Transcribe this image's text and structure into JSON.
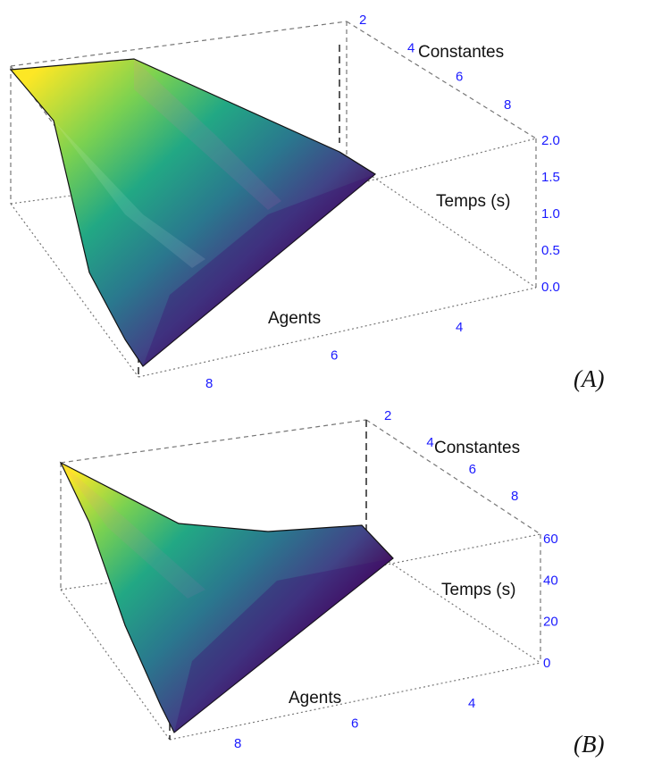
{
  "colors": {
    "palette": [
      "#fde725",
      "#7ad151",
      "#22a884",
      "#2a788e",
      "#414487",
      "#440154"
    ],
    "tick_color": "#1a1aff",
    "box_color": "#777777"
  },
  "chart_data": [
    {
      "type": "surface",
      "panel_label": "(A)",
      "xlabel": "Constantes",
      "ylabel": "Agents",
      "zlabel": "Temps (s)",
      "x_ticks": [
        "2",
        "4",
        "6",
        "8"
      ],
      "y_ticks": [
        "4",
        "6",
        "8"
      ],
      "z_ticks": [
        "0.0",
        "0.5",
        "1.0",
        "1.5",
        "2.0"
      ],
      "zlim": [
        0,
        2
      ],
      "x": [
        2,
        5,
        8
      ],
      "y": [
        2,
        5,
        8
      ],
      "z": [
        [
          0.02,
          0.03,
          0.05
        ],
        [
          0.05,
          0.45,
          0.9
        ],
        [
          0.1,
          1.0,
          1.95
        ]
      ]
    },
    {
      "type": "surface",
      "panel_label": "(B)",
      "xlabel": "Constantes",
      "ylabel": "Agents",
      "zlabel": "Temps (s)",
      "x_ticks": [
        "2",
        "4",
        "6",
        "8"
      ],
      "y_ticks": [
        "4",
        "6",
        "8"
      ],
      "z_ticks": [
        "0",
        "20",
        "40",
        "60"
      ],
      "zlim": [
        0,
        60
      ],
      "x": [
        2,
        5,
        8
      ],
      "y": [
        2,
        5,
        8
      ],
      "z": [
        [
          0.5,
          1,
          2
        ],
        [
          1,
          10,
          25
        ],
        [
          2,
          25,
          60
        ]
      ]
    }
  ]
}
